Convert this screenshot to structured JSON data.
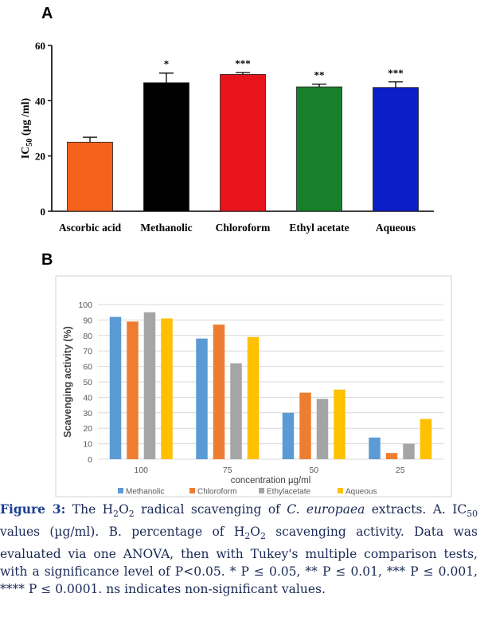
{
  "panelA": {
    "letter": "A",
    "chart_data": {
      "type": "bar",
      "categories": [
        "Ascorbic acid",
        "Methanolic",
        "Chloroform",
        "Ethyl acetate",
        "Aqueous"
      ],
      "values": [
        25,
        46.5,
        49.5,
        45,
        44.8
      ],
      "errors": [
        1.8,
        3.5,
        0.7,
        1.0,
        2.0
      ],
      "significance": [
        "",
        "*",
        "***",
        "**",
        "***"
      ],
      "colors": [
        "#f5621c",
        "#000000",
        "#e8141c",
        "#16802a",
        "#0b1ec8"
      ],
      "ylabel_prefix": "IC",
      "ylabel_sub": "50",
      "ylabel_suffix": " (µg /ml)",
      "ylim": [
        0,
        60
      ],
      "yticks": [
        0,
        20,
        40,
        60
      ]
    }
  },
  "panelB": {
    "letter": "B",
    "chart_data": {
      "type": "bar",
      "categories": [
        "100",
        "75",
        "50",
        "25"
      ],
      "series": [
        {
          "name": "Methanolic",
          "values": [
            92,
            78,
            30,
            14
          ],
          "color": "#5b9bd5"
        },
        {
          "name": "Chloroform",
          "values": [
            89,
            87,
            43,
            4
          ],
          "color": "#ed7d31"
        },
        {
          "name": "Ethylacetate",
          "values": [
            95,
            62,
            39,
            10
          ],
          "color": "#a5a5a5"
        },
        {
          "name": "Aqueous",
          "values": [
            91,
            79,
            45,
            26
          ],
          "color": "#ffc000"
        }
      ],
      "xlabel": "concentration µg/ml",
      "ylabel": "Scavenging activity (%)",
      "ylim": [
        0,
        100
      ],
      "yticks": [
        0,
        10,
        20,
        30,
        40,
        50,
        60,
        70,
        80,
        90,
        100
      ],
      "grid": true,
      "legend": "bottom"
    }
  },
  "caption": {
    "label": "Figure 3:",
    "t1": " The H",
    "s1": "2",
    "t2": "O",
    "s2": "2",
    "t3": " radical scavenging of ",
    "species": "C. europaea",
    "t4": " extracts. A. IC",
    "s3": "50",
    "t5": " values (µg/ml). B. percentage of H",
    "s4": "2",
    "t6": "O",
    "s5": "2",
    "t7": " scavenging activity. Data was evaluated via one ANOVA, then with Tukey's multiple comparison tests, with a significance level of P<0.05. * P ≤ 0.05, ** P ≤ 0.01, *** P ≤ 0.001, **** P ≤ 0.0001. ns indicates non-significant values."
  }
}
